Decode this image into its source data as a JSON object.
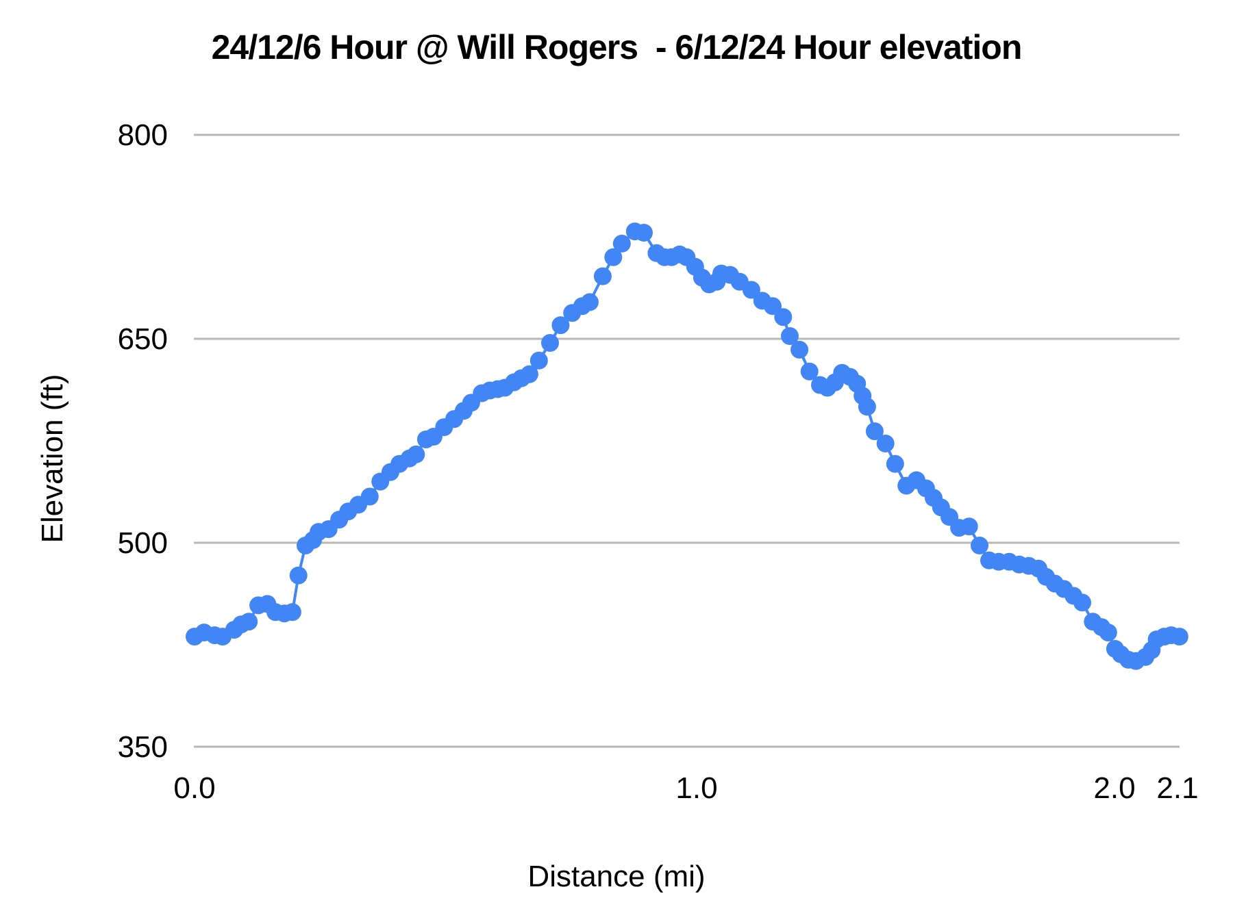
{
  "chart": {
    "title": "24/12/6 Hour @ Will Rogers  - 6/12/24 Hour elevation",
    "x_axis_title": "Distance (mi)",
    "y_axis_title": "Elevation (ft)"
  },
  "chart_data": {
    "type": "line",
    "title": "24/12/6 Hour @ Will Rogers  - 6/12/24 Hour elevation",
    "xlabel": "Distance (mi)",
    "ylabel": "Elevation (ft)",
    "ylim": [
      350,
      800
    ],
    "xlim": [
      0.0,
      2.1
    ],
    "grid": "horizontal-only",
    "legend": "none",
    "series_color": "#4285f4",
    "gridline_color": "#b7b7b7",
    "marker": "circle",
    "x_ticks": [
      {
        "label": "0.0",
        "value": 0.0
      },
      {
        "label": "1.0",
        "value": 1.0
      },
      {
        "label": "2.0",
        "value": 2.0
      },
      {
        "label": "2.1",
        "value": 2.1
      }
    ],
    "y_ticks": [
      {
        "label": "800",
        "value": 800
      },
      {
        "label": "650",
        "value": 650
      },
      {
        "label": "500",
        "value": 500
      },
      {
        "label": "350",
        "value": 350
      }
    ],
    "series": [
      {
        "name": "elevation",
        "points": [
          [
            0.0,
            431
          ],
          [
            0.019,
            434
          ],
          [
            0.04,
            432
          ],
          [
            0.056,
            431
          ],
          [
            0.079,
            436
          ],
          [
            0.093,
            440
          ],
          [
            0.108,
            442
          ],
          [
            0.127,
            454
          ],
          [
            0.145,
            455
          ],
          [
            0.161,
            449
          ],
          [
            0.179,
            448
          ],
          [
            0.195,
            449
          ],
          [
            0.207,
            476
          ],
          [
            0.221,
            498
          ],
          [
            0.236,
            502
          ],
          [
            0.247,
            508
          ],
          [
            0.267,
            510
          ],
          [
            0.288,
            517
          ],
          [
            0.306,
            523
          ],
          [
            0.326,
            528
          ],
          [
            0.349,
            534
          ],
          [
            0.37,
            545
          ],
          [
            0.39,
            552
          ],
          [
            0.408,
            558
          ],
          [
            0.428,
            562
          ],
          [
            0.441,
            565
          ],
          [
            0.461,
            576
          ],
          [
            0.476,
            578
          ],
          [
            0.497,
            585
          ],
          [
            0.517,
            591
          ],
          [
            0.536,
            597
          ],
          [
            0.551,
            603
          ],
          [
            0.572,
            610
          ],
          [
            0.588,
            612
          ],
          [
            0.604,
            613
          ],
          [
            0.618,
            614
          ],
          [
            0.636,
            618
          ],
          [
            0.651,
            621
          ],
          [
            0.667,
            624
          ],
          [
            0.686,
            634
          ],
          [
            0.708,
            647
          ],
          [
            0.729,
            660
          ],
          [
            0.752,
            669
          ],
          [
            0.772,
            674
          ],
          [
            0.787,
            677
          ],
          [
            0.813,
            696
          ],
          [
            0.834,
            710
          ],
          [
            0.851,
            720
          ],
          [
            0.877,
            729
          ],
          [
            0.895,
            728
          ],
          [
            0.92,
            713
          ],
          [
            0.936,
            710
          ],
          [
            0.95,
            710
          ],
          [
            0.966,
            712
          ],
          [
            0.98,
            710
          ],
          [
            0.997,
            703
          ],
          [
            1.013,
            695
          ],
          [
            1.03,
            690
          ],
          [
            1.048,
            692
          ],
          [
            1.059,
            698
          ],
          [
            1.08,
            697
          ],
          [
            1.103,
            692
          ],
          [
            1.131,
            686
          ],
          [
            1.157,
            678
          ],
          [
            1.182,
            674
          ],
          [
            1.207,
            666
          ],
          [
            1.223,
            652
          ],
          [
            1.246,
            642
          ],
          [
            1.27,
            626
          ],
          [
            1.295,
            616
          ],
          [
            1.313,
            614
          ],
          [
            1.331,
            618
          ],
          [
            1.348,
            625
          ],
          [
            1.367,
            622
          ],
          [
            1.384,
            617
          ],
          [
            1.397,
            608
          ],
          [
            1.408,
            600
          ],
          [
            1.426,
            582
          ],
          [
            1.452,
            573
          ],
          [
            1.475,
            558
          ],
          [
            1.502,
            542
          ],
          [
            1.526,
            546
          ],
          [
            1.549,
            540
          ],
          [
            1.567,
            533
          ],
          [
            1.585,
            526
          ],
          [
            1.605,
            519
          ],
          [
            1.628,
            511
          ],
          [
            1.652,
            512
          ],
          [
            1.677,
            498
          ],
          [
            1.7,
            487
          ],
          [
            1.723,
            486
          ],
          [
            1.748,
            486
          ],
          [
            1.772,
            484
          ],
          [
            1.795,
            483
          ],
          [
            1.818,
            481
          ],
          [
            1.836,
            475
          ],
          [
            1.857,
            470
          ],
          [
            1.879,
            466
          ],
          [
            1.902,
            461
          ],
          [
            1.923,
            456
          ],
          [
            1.948,
            442
          ],
          [
            1.969,
            438
          ],
          [
            1.985,
            434
          ],
          [
            2.001,
            422
          ],
          [
            2.01,
            418
          ],
          [
            2.022,
            414
          ],
          [
            2.034,
            413
          ],
          [
            2.049,
            416
          ],
          [
            2.059,
            421
          ],
          [
            2.067,
            429
          ],
          [
            2.079,
            431
          ],
          [
            2.09,
            432
          ],
          [
            2.103,
            431
          ]
        ]
      }
    ]
  }
}
